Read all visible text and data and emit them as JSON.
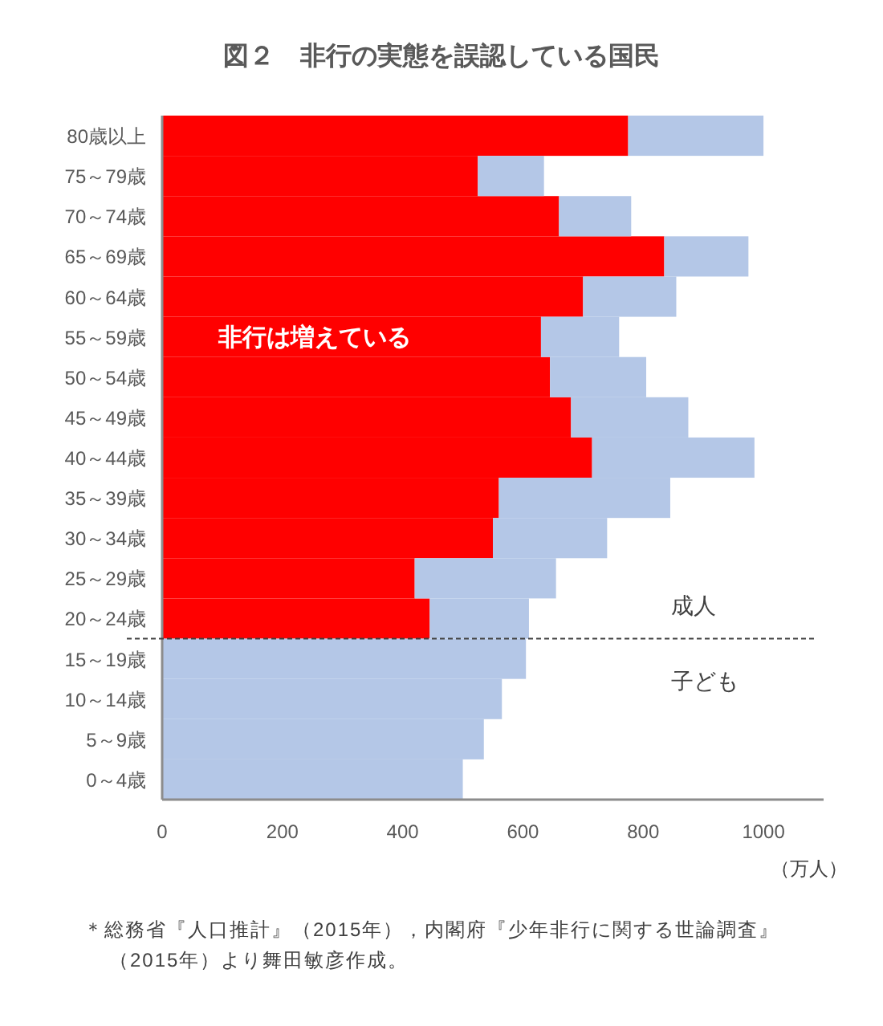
{
  "chart_data": {
    "type": "bar",
    "orientation": "horizontal",
    "stacked": true,
    "title": "図２　非行の実態を誤認している国民",
    "xlabel": "（万人）",
    "categories": [
      "80歳以上",
      "75～79歳",
      "70～74歳",
      "65～69歳",
      "60～64歳",
      "55～59歳",
      "50～54歳",
      "45～49歳",
      "40～44歳",
      "35～39歳",
      "30～34歳",
      "25～29歳",
      "20～24歳",
      "15～19歳",
      "10～14歳",
      "5～9歳",
      "0～4歳"
    ],
    "series": [
      {
        "name": "非行は増えている",
        "color": "#ff0000",
        "values": [
          775,
          525,
          660,
          835,
          700,
          630,
          645,
          680,
          715,
          560,
          550,
          420,
          445,
          null,
          null,
          null,
          null
        ]
      },
      {
        "color": "#b4c7e7",
        "values": [
          225,
          110,
          120,
          140,
          155,
          130,
          160,
          195,
          270,
          285,
          190,
          235,
          165,
          605,
          565,
          535,
          500
        ]
      }
    ],
    "xlim": [
      0,
      1100
    ],
    "xticks": [
      0,
      200,
      400,
      600,
      800,
      1000
    ],
    "annotations": [
      "成人",
      "子ども",
      "＊総務省『人口推計』（2015年），内閣府『少年非行に関する世論調査』（2015年）より舞田敏彦作成。"
    ]
  }
}
